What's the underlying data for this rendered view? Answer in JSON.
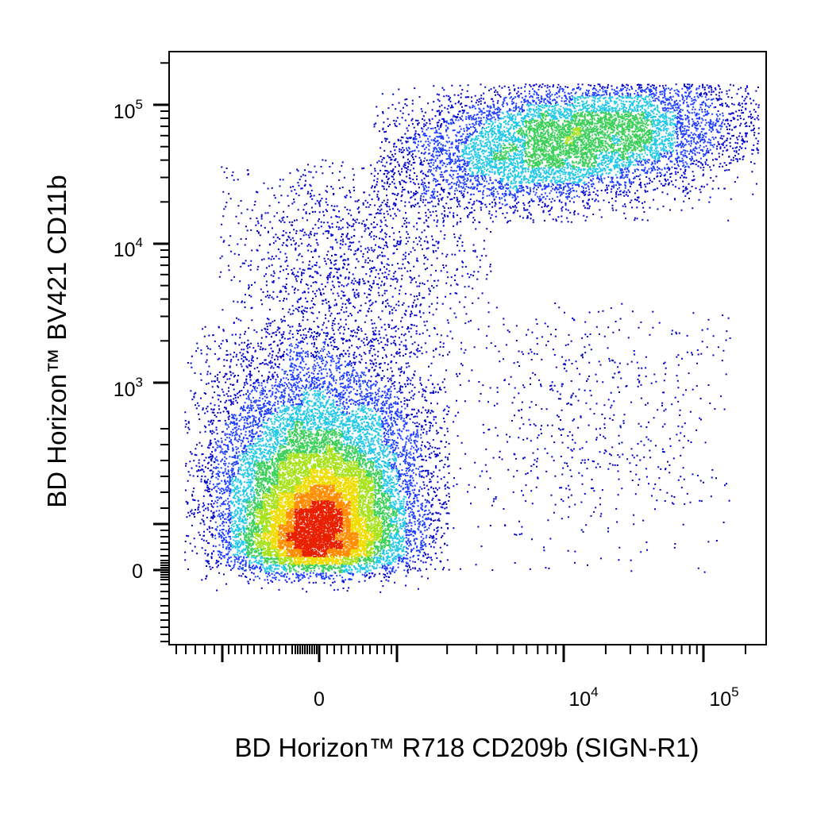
{
  "chart_data": {
    "type": "scatter",
    "style": "flow-cytometry-density-dot-plot",
    "xlabel": "BD Horizon™ R718 CD209b (SIGN-R1)",
    "ylabel": "BD Horizon™ BV421 CD11b",
    "x_scale": "biexponential",
    "y_scale": "biexponential",
    "xlim": [
      -300,
      200000
    ],
    "ylim": [
      -300,
      250000
    ],
    "x_ticks": [
      {
        "value": 0,
        "base": "0",
        "exp": ""
      },
      {
        "value": 10000,
        "base": "10",
        "exp": "4"
      },
      {
        "value": 100000,
        "base": "10",
        "exp": "5"
      }
    ],
    "y_ticks": [
      {
        "value": 0,
        "base": "0",
        "exp": ""
      },
      {
        "value": 1000,
        "base": "10",
        "exp": "3"
      },
      {
        "value": 10000,
        "base": "10",
        "exp": "4"
      },
      {
        "value": 100000,
        "base": "10",
        "exp": "5"
      }
    ],
    "grid": false,
    "legend": "none",
    "density_colors": [
      "#0000cc",
      "#1f3fff",
      "#22c8e8",
      "#3cd05a",
      "#a8e21c",
      "#f0dc00",
      "#ff8c00",
      "#e82000"
    ],
    "populations": [
      {
        "name": "",
        "x_center": 150,
        "y_center": 40,
        "x_range": [
          -200,
          1500
        ],
        "y_range": [
          -150,
          3000
        ],
        "share": 0.62
      },
      {
        "name": "",
        "x_center": 25000,
        "y_center": 60000,
        "x_range": [
          1500,
          120000
        ],
        "y_range": [
          15000,
          140000
        ],
        "share": 0.3
      },
      {
        "name": "",
        "x_center": 2000,
        "y_center": 20000,
        "x_range": [
          -100,
          8000
        ],
        "y_range": [
          1000,
          60000
        ],
        "share": 0.06
      },
      {
        "name": "",
        "x_center": 20000,
        "y_center": 2000,
        "x_range": [
          2000,
          120000
        ],
        "y_range": [
          -100,
          8000
        ],
        "share": 0.02
      }
    ]
  }
}
